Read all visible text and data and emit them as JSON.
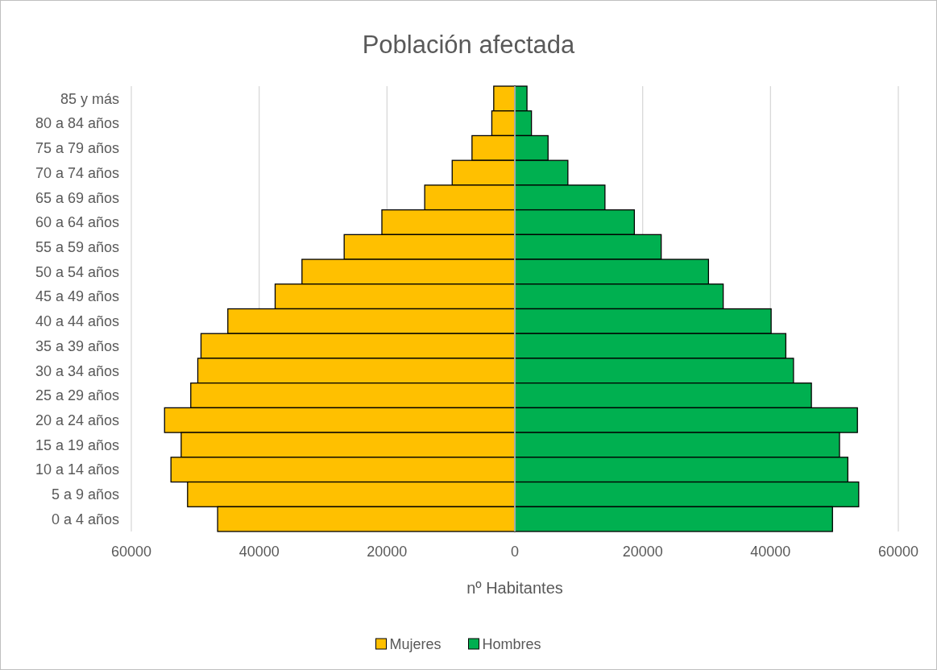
{
  "chart_data": {
    "type": "bar",
    "orientation": "horizontal",
    "title": "Población afectada",
    "xlabel": "nº Habitantes",
    "categories": [
      "85 y más",
      "80 a 84 años",
      "75 a 79 años",
      "70 a 74 años",
      "65 a 69 años",
      "60 a 64 años",
      "55 a 59 años",
      "50 a 54 años",
      "45 a 49 años",
      "40 a 44 años",
      "35 a 39 años",
      "30 a 34 años",
      "25 a 29 años",
      "20 a 24 años",
      "15 a 19 años",
      "10 a 14 años",
      "5 a 9 años",
      "0 a 4 años"
    ],
    "series": [
      {
        "name": "Mujeres",
        "color": "#ffc000",
        "values": [
          -3300,
          -3600,
          -6700,
          -9800,
          -14100,
          -20800,
          -26700,
          -33300,
          -37500,
          -44900,
          -49100,
          -49600,
          -50700,
          -54800,
          -52200,
          -53800,
          -51200,
          -46500
        ]
      },
      {
        "name": "Hombres",
        "color": "#00b050",
        "values": [
          1900,
          2600,
          5200,
          8300,
          14100,
          18700,
          22900,
          30300,
          32600,
          40100,
          42400,
          43600,
          46400,
          53600,
          50800,
          52100,
          53800,
          49700
        ]
      }
    ],
    "xlim": [
      -60000,
      60000
    ],
    "xticks": [
      {
        "value": -60000,
        "label": "60000"
      },
      {
        "value": -40000,
        "label": "40000"
      },
      {
        "value": -20000,
        "label": "20000"
      },
      0,
      20000,
      40000,
      60000
    ],
    "grid": "x",
    "legend": "bottom",
    "stacked": true
  }
}
